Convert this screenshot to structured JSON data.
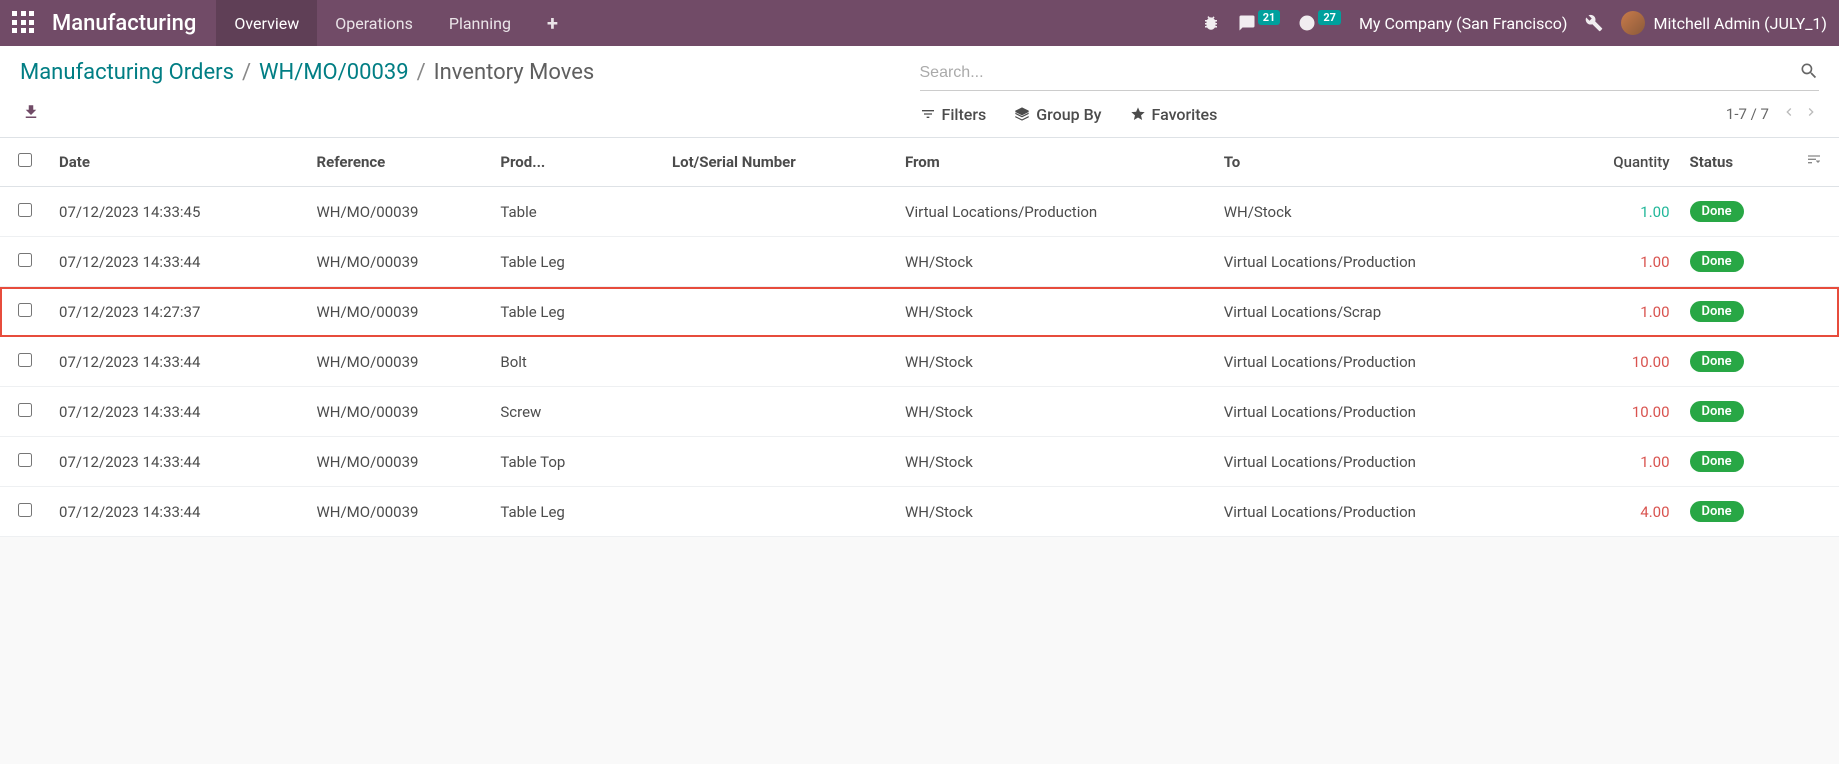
{
  "navbar": {
    "brand": "Manufacturing",
    "menu": [
      {
        "label": "Overview",
        "active": true
      },
      {
        "label": "Operations",
        "active": false
      },
      {
        "label": "Planning",
        "active": false
      }
    ],
    "messages_count": "21",
    "activities_count": "27",
    "company": "My Company (San Francisco)",
    "user": "Mitchell Admin (JULY_1)"
  },
  "breadcrumb": {
    "root": "Manufacturing Orders",
    "mid": "WH/MO/00039",
    "current": "Inventory Moves"
  },
  "search": {
    "placeholder": "Search..."
  },
  "toolbar": {
    "filters": "Filters",
    "groupby": "Group By",
    "favorites": "Favorites",
    "pager": "1-7 / 7"
  },
  "table": {
    "columns": {
      "date": "Date",
      "reference": "Reference",
      "product": "Prod...",
      "lot": "Lot/Serial Number",
      "from": "From",
      "to": "To",
      "quantity": "Quantity",
      "status": "Status"
    },
    "rows": [
      {
        "date": "07/12/2023 14:33:45",
        "ref": "WH/MO/00039",
        "prod": "Table",
        "lot": "",
        "from": "Virtual Locations/Production",
        "to": "WH/Stock",
        "qty": "1.00",
        "qty_color": "green",
        "status": "Done",
        "highlight": false
      },
      {
        "date": "07/12/2023 14:33:44",
        "ref": "WH/MO/00039",
        "prod": "Table Leg",
        "lot": "",
        "from": "WH/Stock",
        "to": "Virtual Locations/Production",
        "qty": "1.00",
        "qty_color": "red",
        "status": "Done",
        "highlight": false
      },
      {
        "date": "07/12/2023 14:27:37",
        "ref": "WH/MO/00039",
        "prod": "Table Leg",
        "lot": "",
        "from": "WH/Stock",
        "to": "Virtual Locations/Scrap",
        "qty": "1.00",
        "qty_color": "red",
        "status": "Done",
        "highlight": true
      },
      {
        "date": "07/12/2023 14:33:44",
        "ref": "WH/MO/00039",
        "prod": "Bolt",
        "lot": "",
        "from": "WH/Stock",
        "to": "Virtual Locations/Production",
        "qty": "10.00",
        "qty_color": "red",
        "status": "Done",
        "highlight": false
      },
      {
        "date": "07/12/2023 14:33:44",
        "ref": "WH/MO/00039",
        "prod": "Screw",
        "lot": "",
        "from": "WH/Stock",
        "to": "Virtual Locations/Production",
        "qty": "10.00",
        "qty_color": "red",
        "status": "Done",
        "highlight": false
      },
      {
        "date": "07/12/2023 14:33:44",
        "ref": "WH/MO/00039",
        "prod": "Table Top",
        "lot": "",
        "from": "WH/Stock",
        "to": "Virtual Locations/Production",
        "qty": "1.00",
        "qty_color": "red",
        "status": "Done",
        "highlight": false
      },
      {
        "date": "07/12/2023 14:33:44",
        "ref": "WH/MO/00039",
        "prod": "Table Leg",
        "lot": "",
        "from": "WH/Stock",
        "to": "Virtual Locations/Production",
        "qty": "4.00",
        "qty_color": "red",
        "status": "Done",
        "highlight": false
      }
    ]
  }
}
